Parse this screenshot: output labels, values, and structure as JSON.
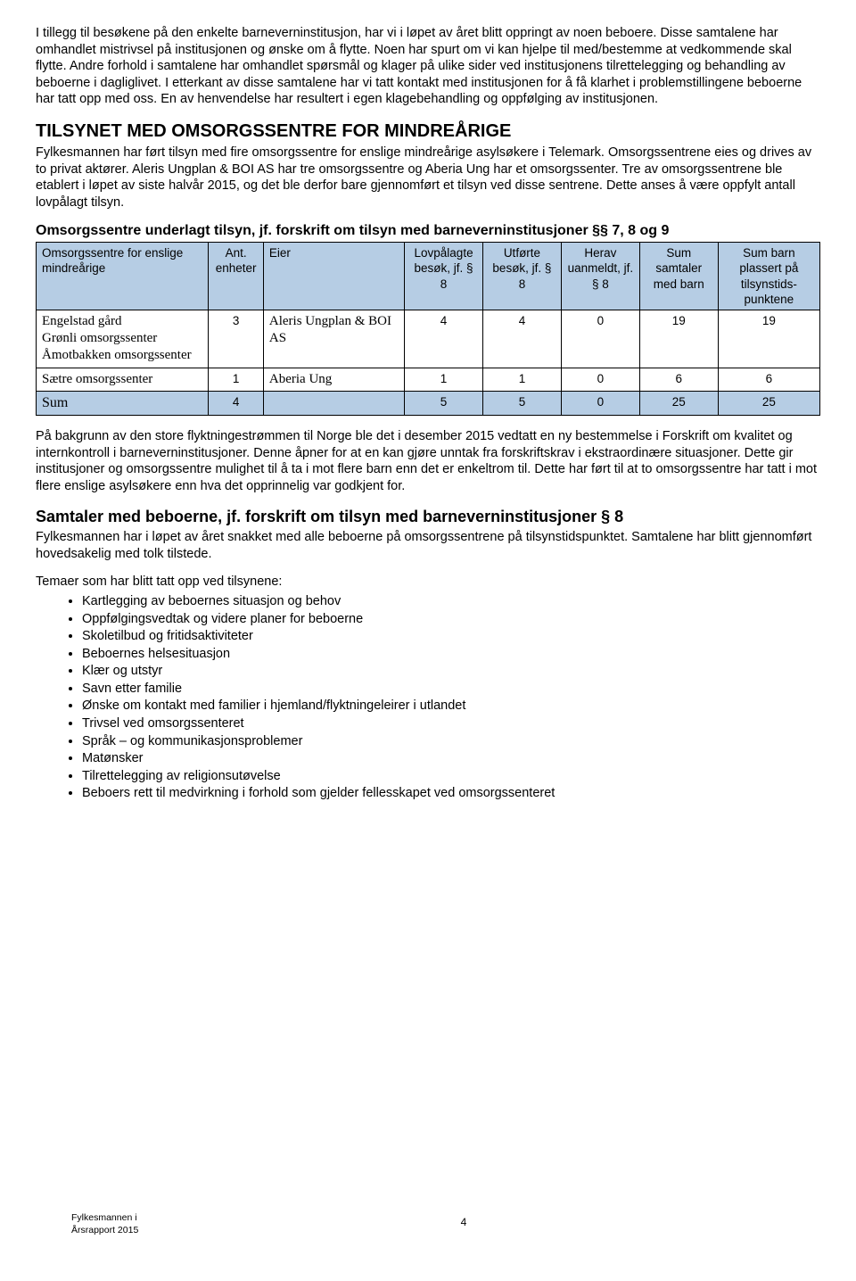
{
  "intro_paragraph": "I tillegg til besøkene på den enkelte barneverninstitusjon, har vi i løpet av året blitt oppringt av noen beboere. Disse samtalene har omhandlet mistrivsel på institusjonen og ønske om å flytte. Noen har spurt om vi kan hjelpe til med/bestemme at vedkommende skal flytte. Andre forhold i samtalene har omhandlet spørsmål og klager på ulike sider ved institusjonens tilrettelegging og behandling av beboerne i dagliglivet. I etterkant av disse samtalene har vi tatt kontakt med institusjonen for å få klarhet i problemstillingene beboerne har tatt opp med oss. En av henvendelse har resultert i egen klagebehandling og oppfølging av institusjonen.",
  "section1": {
    "title": "TILSYNET MED OMSORGSSENTRE FOR MINDREÅRIGE",
    "body": "Fylkesmannen har ført tilsyn med fire omsorgssentre for enslige mindreårige asylsøkere i Telemark. Omsorgssentrene eies og drives av to privat aktører. Aleris Ungplan & BOI AS har tre omsorgssentre og Aberia Ung har et omsorgssenter. Tre av omsorgssentrene ble etablert i løpet av siste halvår 2015, og det ble derfor bare gjennomført et tilsyn ved disse sentrene. Dette anses å være oppfylt antall lovpålagt tilsyn."
  },
  "table": {
    "caption": "Omsorgssentre underlagt tilsyn, jf. forskrift om tilsyn med barneverninstitusjoner §§ 7, 8 og 9",
    "headers": [
      "Omsorgssentre for enslige mindreårige",
      "Ant. enheter",
      "Eier",
      "Lovpålagte besøk, jf. § 8",
      "Utførte besøk, jf. § 8",
      "Herav uanmeldt, jf. § 8",
      "Sum samtaler med barn",
      "Sum barn plassert på tilsynstids-punktene"
    ],
    "header_bg": "#b6cde4",
    "border_color": "#000000",
    "rows": [
      {
        "label_lines": [
          "Engelstad gård",
          "Grønli omsorgssenter",
          "Åmotbakken omsorgssenter"
        ],
        "enheter": "3",
        "eier": "Aleris Ungplan & BOI AS",
        "lovpalagte": "4",
        "utforte": "4",
        "uanmeldt": "0",
        "samtaler": "19",
        "plassert": "19"
      },
      {
        "label_lines": [
          "Sætre omsorgssenter"
        ],
        "enheter": "1",
        "eier": "Aberia Ung",
        "lovpalagte": "1",
        "utforte": "1",
        "uanmeldt": "0",
        "samtaler": "6",
        "plassert": "6"
      }
    ],
    "sum_row": {
      "label": "Sum",
      "enheter": "4",
      "eier": "",
      "lovpalagte": "5",
      "utforte": "5",
      "uanmeldt": "0",
      "samtaler": "25",
      "plassert": "25"
    }
  },
  "after_table_para": "På bakgrunn av den store flyktningestrømmen til Norge ble det i desember 2015 vedtatt en ny bestemmelse i Forskrift om kvalitet og internkontroll i barneverninstitusjoner. Denne åpner for at en kan gjøre unntak fra forskriftskrav i ekstraordinære situasjoner. Dette gir institusjoner og omsorgssentre mulighet til å ta i mot flere barn enn det er enkeltrom til. Dette har ført til at to omsorgssentre har tatt i mot flere enslige asylsøkere enn hva det opprinnelig var godkjent for.",
  "section2": {
    "title": "Samtaler med beboerne, jf. forskrift om tilsyn med barneverninstitusjoner § 8",
    "body": "Fylkesmannen har i løpet av året snakket med alle beboerne på omsorgssentrene på tilsynstidspunktet. Samtalene har blitt gjennomført hovedsakelig med tolk tilstede."
  },
  "bullets_intro": "Temaer som har blitt tatt opp ved tilsynene:",
  "bullets": [
    "Kartlegging av beboernes situasjon og behov",
    "Oppfølgingsvedtak og videre planer for beboerne",
    "Skoletilbud og fritidsaktiviteter",
    "Beboernes helsesituasjon",
    "Klær og utstyr",
    "Savn etter familie",
    "Ønske om kontakt med familier i hjemland/flyktningeleirer i utlandet",
    "Trivsel ved omsorgssenteret",
    "Språk – og kommunikasjonsproblemer",
    "Matønsker",
    "Tilrettelegging av religionsutøvelse",
    "Beboers rett til medvirkning i forhold som gjelder fellesskapet ved omsorgssenteret"
  ],
  "footer": {
    "line1": "Fylkesmannen i",
    "line2": "Årsrapport 2015",
    "page": "4"
  }
}
